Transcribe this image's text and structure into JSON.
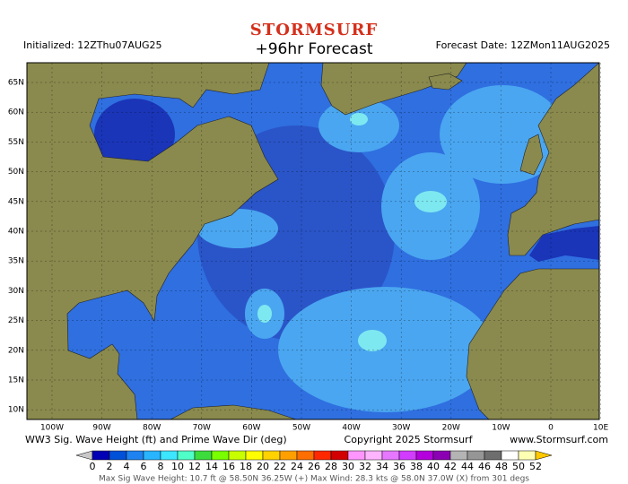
{
  "header": {
    "logo": "STORMSURF",
    "title": "+96hr Forecast",
    "initialized": "Initialized: 12ZThu07AUG25",
    "forecast_date": "Forecast Date: 12ZMon11AUG2025"
  },
  "map": {
    "lat_labels": [
      "65N",
      "60N",
      "55N",
      "50N",
      "45N",
      "40N",
      "35N",
      "30N",
      "25N",
      "20N",
      "15N",
      "10N"
    ],
    "lon_labels": [
      "100W",
      "90W",
      "80W",
      "70W",
      "60W",
      "50W",
      "40W",
      "30W",
      "20W",
      "10W",
      "0",
      "10E"
    ]
  },
  "footer": {
    "caption": "WW3 Sig. Wave Height (ft) and Prime Wave Dir (deg)",
    "copyright": "Copyright 2025 Stormsurf",
    "url": "www.Stormsurf.com"
  },
  "legend": {
    "labels": [
      0,
      2,
      4,
      6,
      8,
      10,
      12,
      14,
      16,
      18,
      20,
      22,
      24,
      26,
      28,
      30,
      32,
      34,
      36,
      38,
      40,
      42,
      44,
      46,
      48,
      50,
      52
    ]
  },
  "stats": "Max Sig Wave Height: 10.7 ft @ 58.50N 36.25W (+)   Max Wind: 28.3 kts @ 58.0N 37.0W (X) from 301 degs"
}
